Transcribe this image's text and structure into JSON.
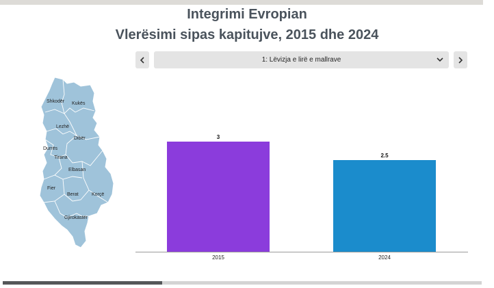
{
  "header": {
    "title_line1": "Integrimi Evropian",
    "title_line2": "Vlerësimi sipas kapitujve, 2015 dhe 2024"
  },
  "controls": {
    "prev_icon": "chevron-left-icon",
    "next_icon": "chevron-right-icon",
    "dropdown_icon": "chevron-down-icon",
    "selected_chapter": "1: Lëvizja e lirë e mallrave"
  },
  "map": {
    "fill_color": "#9fc3da",
    "border_color": "#ffffff",
    "regions": [
      "Shkodër",
      "Kukës",
      "Lezhë",
      "Dibër",
      "Durrës",
      "Tirana",
      "Elbasan",
      "Fier",
      "Berat",
      "Korçë",
      "Gjirokastër"
    ]
  },
  "chart_data": {
    "type": "bar",
    "categories": [
      "2015",
      "2024"
    ],
    "values": [
      3,
      2.5
    ],
    "value_labels": [
      "3",
      "2.5"
    ],
    "colors": [
      "#8b3cdc",
      "#1b8ccc"
    ],
    "ylim": [
      0,
      3.5
    ],
    "xlabel": "",
    "ylabel": "",
    "grid": false
  },
  "slides": {
    "progress": 0.333
  }
}
